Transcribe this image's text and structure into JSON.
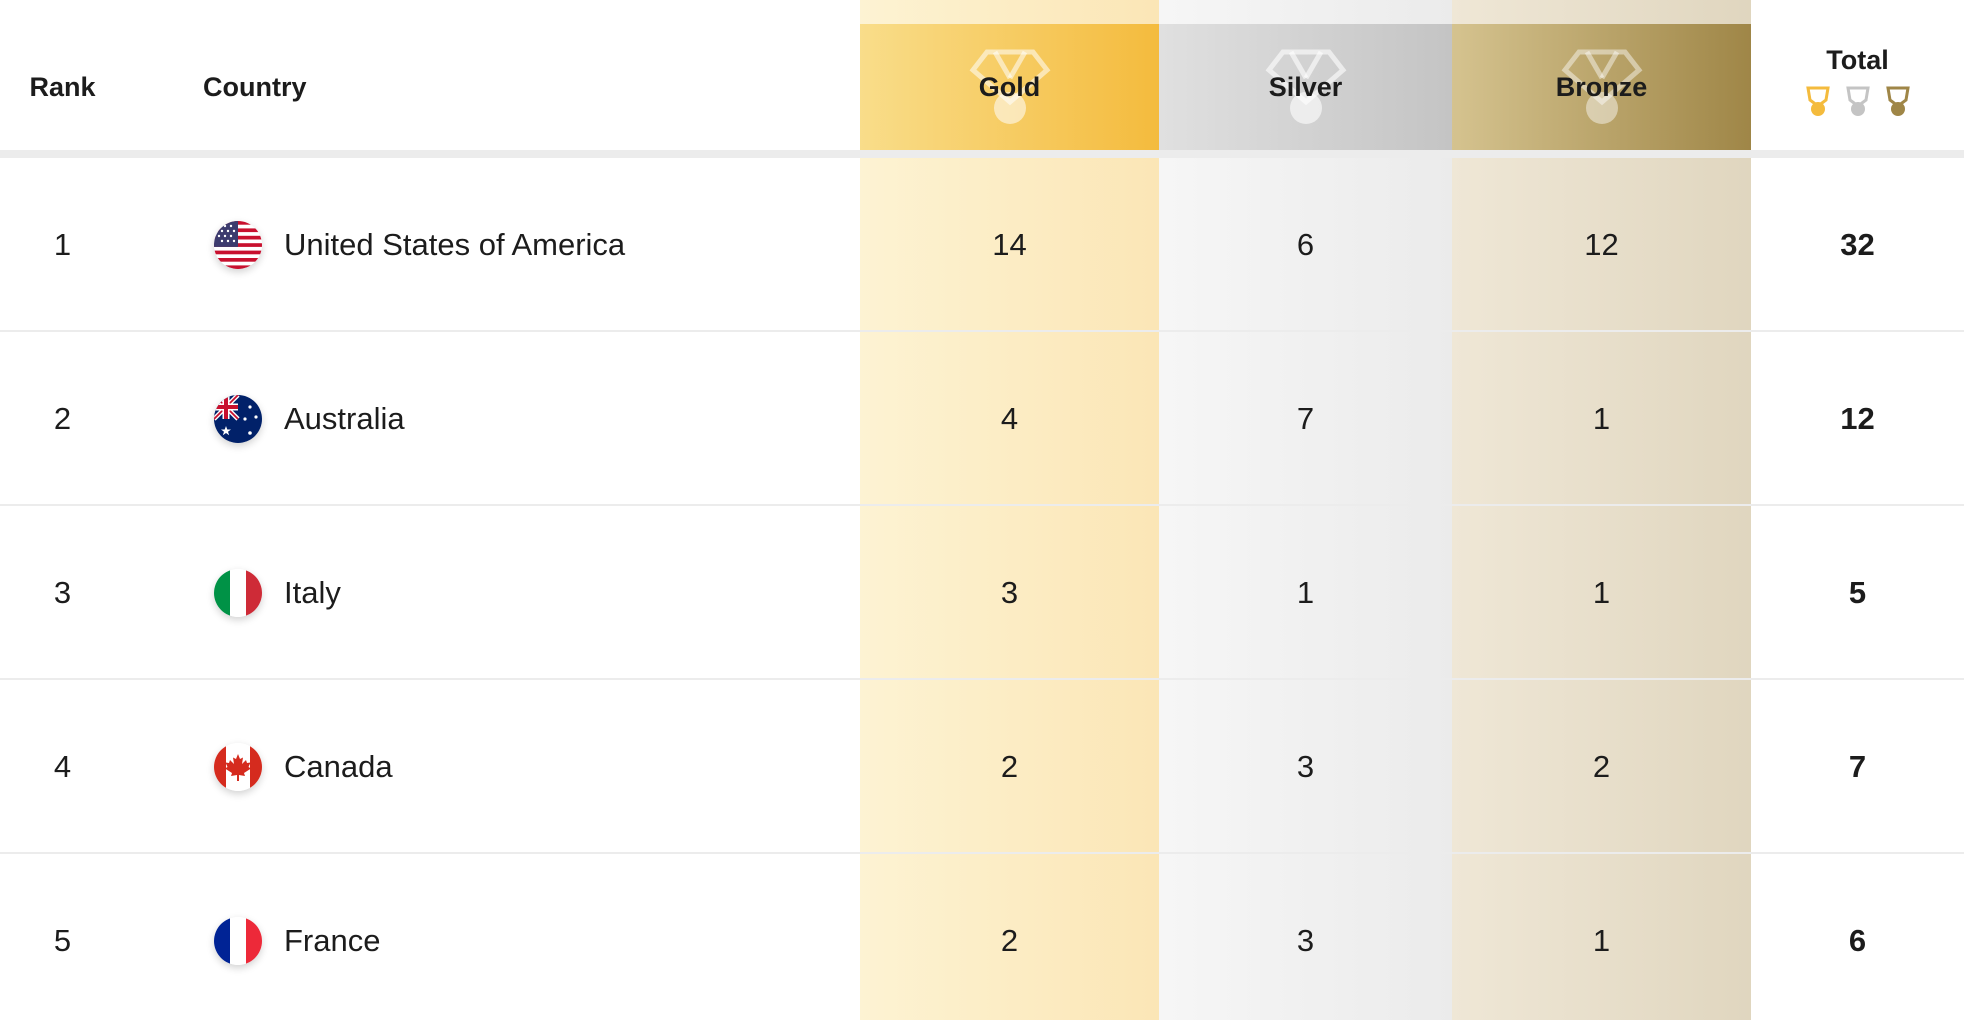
{
  "header": {
    "rank": "Rank",
    "country": "Country",
    "gold": "Gold",
    "silver": "Silver",
    "bronze": "Bronze",
    "total": "Total"
  },
  "colors": {
    "gold": "#f4bb3d",
    "silver": "#c4c4c4",
    "bronze": "#9f8647"
  },
  "rows": [
    {
      "rank": "1",
      "country": "United States of America",
      "flag": "usa-flag-icon",
      "gold": "14",
      "silver": "6",
      "bronze": "12",
      "total": "32"
    },
    {
      "rank": "2",
      "country": "Australia",
      "flag": "australia-flag-icon",
      "gold": "4",
      "silver": "7",
      "bronze": "1",
      "total": "12"
    },
    {
      "rank": "3",
      "country": "Italy",
      "flag": "italy-flag-icon",
      "gold": "3",
      "silver": "1",
      "bronze": "1",
      "total": "5"
    },
    {
      "rank": "4",
      "country": "Canada",
      "flag": "canada-flag-icon",
      "gold": "2",
      "silver": "3",
      "bronze": "2",
      "total": "7"
    },
    {
      "rank": "5",
      "country": "France",
      "flag": "france-flag-icon",
      "gold": "2",
      "silver": "3",
      "bronze": "1",
      "total": "6"
    }
  ]
}
